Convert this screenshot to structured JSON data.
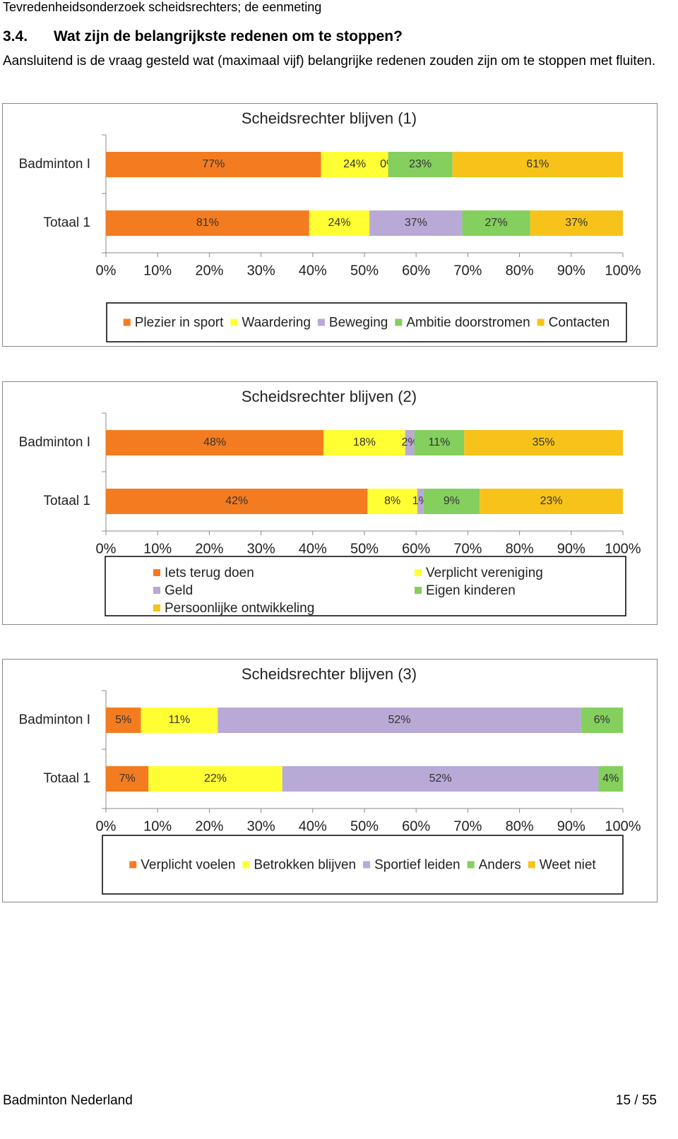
{
  "header": {
    "running_title": "Tevredenheidsonderzoek scheidsrechters; de eenmeting"
  },
  "section": {
    "number": "3.4.",
    "title": "Wat zijn de belangrijkste redenen om te stoppen?",
    "text": "Aansluitend is de vraag gesteld wat (maximaal vijf) belangrijke redenen zouden zijn om te stoppen met fluiten."
  },
  "chart_data": [
    {
      "type": "bar",
      "orientation": "horizontal",
      "stacking": "percent",
      "title": "Scheidsrechter blijven (1)",
      "categories": [
        "Badminton I",
        "Totaal 1"
      ],
      "series": [
        {
          "name": "Plezier in sport",
          "color": "#f47c20",
          "values": [
            77,
            81
          ],
          "value_labels": [
            "77%",
            "81%"
          ]
        },
        {
          "name": "Waardering",
          "color": "#ffff33",
          "values": [
            24,
            24
          ],
          "value_labels": [
            "24%",
            "24%"
          ]
        },
        {
          "name": "Beweging",
          "color": "#b9a9d6",
          "values": [
            0,
            37
          ],
          "value_labels": [
            "0%",
            "37%"
          ]
        },
        {
          "name": "Ambitie doorstromen",
          "color": "#84cf5d",
          "values": [
            23,
            27
          ],
          "value_labels": [
            "23%",
            "27%"
          ]
        },
        {
          "name": "Contacten",
          "color": "#f7c31a",
          "values": [
            61,
            37
          ],
          "value_labels": [
            "61%",
            "37%"
          ]
        }
      ],
      "xlim": [
        0,
        100
      ],
      "xticks": [
        {
          "value": 0,
          "label": "0%"
        },
        {
          "value": 10,
          "label": "10%"
        },
        {
          "value": 20,
          "label": "20%"
        },
        {
          "value": 30,
          "label": "30%"
        },
        {
          "value": 40,
          "label": "40%"
        },
        {
          "value": 50,
          "label": "50%"
        },
        {
          "value": 60,
          "label": "60%"
        },
        {
          "value": 70,
          "label": "70%"
        },
        {
          "value": 80,
          "label": "80%"
        },
        {
          "value": 90,
          "label": "90%"
        },
        {
          "value": 100,
          "label": "100%"
        }
      ],
      "legend_columns": 5
    },
    {
      "type": "bar",
      "orientation": "horizontal",
      "stacking": "percent",
      "title": "Scheidsrechter blijven (2)",
      "categories": [
        "Badminton I",
        "Totaal 1"
      ],
      "series": [
        {
          "name": "Iets terug doen",
          "color": "#f47c20",
          "values": [
            48,
            42
          ],
          "value_labels": [
            "48%",
            "42%"
          ]
        },
        {
          "name": "Verplicht vereniging",
          "color": "#ffff33",
          "values": [
            18,
            8
          ],
          "value_labels": [
            "18%",
            "8%"
          ]
        },
        {
          "name": "Geld",
          "color": "#b9a9d6",
          "values": [
            2,
            1
          ],
          "value_labels": [
            "2%",
            "1%"
          ]
        },
        {
          "name": "Eigen kinderen",
          "color": "#84cf5d",
          "values": [
            11,
            9
          ],
          "value_labels": [
            "11%",
            "9%"
          ]
        },
        {
          "name": "Persoonlijke ontwikkeling",
          "color": "#f7c31a",
          "values": [
            35,
            23
          ],
          "value_labels": [
            "35%",
            "23%"
          ]
        }
      ],
      "xlim": [
        0,
        100
      ],
      "xticks": [
        {
          "value": 0,
          "label": "0%"
        },
        {
          "value": 10,
          "label": "10%"
        },
        {
          "value": 20,
          "label": "20%"
        },
        {
          "value": 30,
          "label": "30%"
        },
        {
          "value": 40,
          "label": "40%"
        },
        {
          "value": 50,
          "label": "50%"
        },
        {
          "value": 60,
          "label": "60%"
        },
        {
          "value": 70,
          "label": "70%"
        },
        {
          "value": 80,
          "label": "80%"
        },
        {
          "value": 90,
          "label": "90%"
        },
        {
          "value": 100,
          "label": "100%"
        }
      ],
      "legend_columns": 2
    },
    {
      "type": "bar",
      "orientation": "horizontal",
      "stacking": "percent",
      "title": "Scheidsrechter blijven (3)",
      "categories": [
        "Badminton I",
        "Totaal 1"
      ],
      "series": [
        {
          "name": "Verplicht voelen",
          "color": "#f47c20",
          "values": [
            5,
            7
          ],
          "value_labels": [
            "5%",
            "7%"
          ]
        },
        {
          "name": "Betrokken blijven",
          "color": "#ffff33",
          "values": [
            11,
            22
          ],
          "value_labels": [
            "11%",
            "22%"
          ]
        },
        {
          "name": "Sportief leiden",
          "color": "#b9a9d6",
          "values": [
            52,
            52
          ],
          "value_labels": [
            "52%",
            "52%"
          ]
        },
        {
          "name": "Anders",
          "color": "#84cf5d",
          "values": [
            6,
            4
          ],
          "value_labels": [
            "6%",
            "4%"
          ]
        },
        {
          "name": "Weet niet",
          "color": "#f7c31a",
          "values": [
            0,
            0
          ]
        }
      ],
      "xlim": [
        0,
        100
      ],
      "xticks": [
        {
          "value": 0,
          "label": "0%"
        },
        {
          "value": 10,
          "label": "10%"
        },
        {
          "value": 20,
          "label": "20%"
        },
        {
          "value": 30,
          "label": "30%"
        },
        {
          "value": 40,
          "label": "40%"
        },
        {
          "value": 50,
          "label": "50%"
        },
        {
          "value": 60,
          "label": "60%"
        },
        {
          "value": 70,
          "label": "70%"
        },
        {
          "value": 80,
          "label": "80%"
        },
        {
          "value": 90,
          "label": "90%"
        },
        {
          "value": 100,
          "label": "100%"
        }
      ],
      "legend_columns": 5
    }
  ],
  "footer": {
    "left": "Badminton Nederland",
    "page": "15 / 55"
  }
}
